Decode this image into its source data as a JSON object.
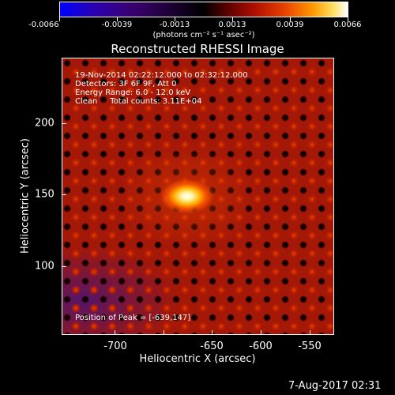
{
  "colorbar": {
    "labels": [
      "-0.0066",
      "-0.0039",
      "-0.0013",
      "0.0013",
      "0.0039",
      "0.0066"
    ],
    "units": "(photons cm⁻² s⁻¹ asec⁻²)"
  },
  "title": "Reconstructed RHESSI Image",
  "info": {
    "time": "19-Nov-2014 02:22:12.000 to 02:32:12.000",
    "detectors": "Detectors: 3F 6F 9F, Att 0",
    "energy": "Energy Range: 6.0 - 12.0 keV",
    "clean": "Clean     Total counts: 3.11E+04",
    "peak": "Position of Peak = [-639,147]"
  },
  "axes": {
    "x_ticks": [
      "-700",
      "-650",
      "-600",
      "-550"
    ],
    "y_ticks": [
      "200",
      "150",
      "100"
    ],
    "xlabel": "Heliocentric X (arcsec)",
    "ylabel": "Heliocentric Y (arcsec)"
  },
  "footer": "7-Aug-2017 02:31"
}
